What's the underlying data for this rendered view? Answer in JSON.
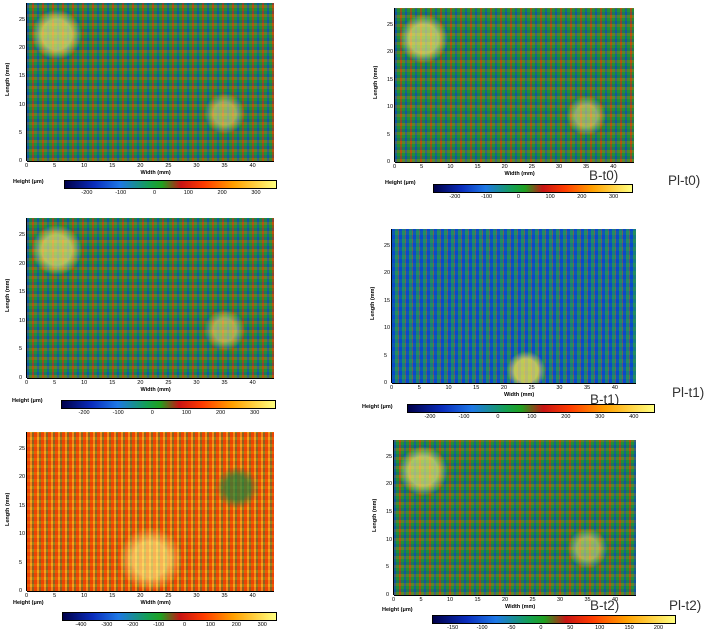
{
  "axis": {
    "ylabel": "Length (mm)",
    "xlabel": "Width (mm)",
    "yticks": [
      "0",
      "5",
      "10",
      "15",
      "20",
      "25"
    ],
    "xticks": [
      "0",
      "5",
      "10",
      "15",
      "20",
      "25",
      "30",
      "35",
      "40"
    ]
  },
  "colorbar_title": "Height (μm)",
  "panels": [
    {
      "label": "B-t0)",
      "colorbar_ticks": [
        "-200",
        "-100",
        "0",
        "100",
        "200",
        "300"
      ]
    },
    {
      "label": "Pl-t0)",
      "colorbar_ticks": [
        "-200",
        "-100",
        "0",
        "100",
        "200",
        "300"
      ]
    },
    {
      "label": "B-t1)",
      "colorbar_ticks": [
        "-200",
        "-100",
        "0",
        "100",
        "200",
        "300"
      ]
    },
    {
      "label": "Pl-t1)",
      "colorbar_ticks": [
        "-200",
        "-100",
        "0",
        "100",
        "200",
        "300",
        "400"
      ]
    },
    {
      "label": "B-t2)",
      "colorbar_ticks": [
        "-400",
        "-300",
        "-200",
        "-100",
        "0",
        "100",
        "200",
        "300"
      ]
    },
    {
      "label": "Pl-t2)",
      "colorbar_ticks": [
        "-150",
        "-100",
        "-50",
        "0",
        "50",
        "100",
        "150",
        "200"
      ]
    }
  ]
}
